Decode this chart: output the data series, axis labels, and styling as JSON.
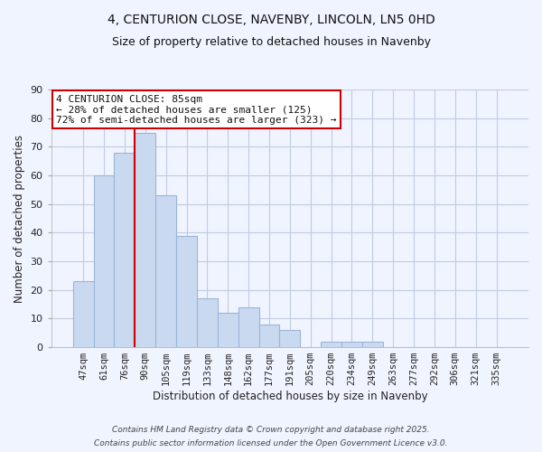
{
  "title_line1": "4, CENTURION CLOSE, NAVENBY, LINCOLN, LN5 0HD",
  "title_line2": "Size of property relative to detached houses in Navenby",
  "xlabel": "Distribution of detached houses by size in Navenby",
  "ylabel": "Number of detached properties",
  "bar_labels": [
    "47sqm",
    "61sqm",
    "76sqm",
    "90sqm",
    "105sqm",
    "119sqm",
    "133sqm",
    "148sqm",
    "162sqm",
    "177sqm",
    "191sqm",
    "205sqm",
    "220sqm",
    "234sqm",
    "249sqm",
    "263sqm",
    "277sqm",
    "292sqm",
    "306sqm",
    "321sqm",
    "335sqm"
  ],
  "bar_values": [
    23,
    60,
    68,
    75,
    53,
    39,
    17,
    12,
    14,
    8,
    6,
    0,
    2,
    2,
    2,
    0,
    0,
    0,
    0,
    0,
    0
  ],
  "bar_color": "#c9d9f0",
  "bar_edge_color": "#9ab5d8",
  "vline_x_index": 2.5,
  "vline_color": "#cc0000",
  "ylim": [
    0,
    90
  ],
  "yticks": [
    0,
    10,
    20,
    30,
    40,
    50,
    60,
    70,
    80,
    90
  ],
  "annotation_line1": "4 CENTURION CLOSE: 85sqm",
  "annotation_line2": "← 28% of detached houses are smaller (125)",
  "annotation_line3": "72% of semi-detached houses are larger (323) →",
  "annotation_box_color": "#ffffff",
  "annotation_box_edge": "#cc0000",
  "footer_line1": "Contains HM Land Registry data © Crown copyright and database right 2025.",
  "footer_line2": "Contains public sector information licensed under the Open Government Licence v3.0.",
  "background_color": "#f0f4ff",
  "grid_color": "#c0cce0",
  "title_fontsize": 10,
  "subtitle_fontsize": 9,
  "axis_label_fontsize": 8.5,
  "tick_fontsize": 7.5
}
